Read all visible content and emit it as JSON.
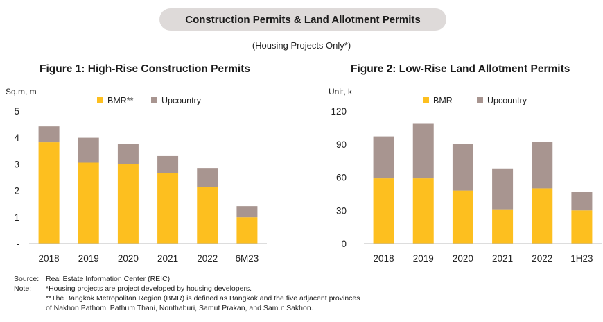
{
  "header": {
    "title": "Construction Permits & Land Allotment Permits",
    "subtitle": "(Housing Projects Only*)"
  },
  "colors": {
    "bmr": "#FDBF1F",
    "upcountry": "#A89590",
    "pill_bg": "#DEDAD9"
  },
  "chart_data": [
    {
      "type": "bar",
      "stacked": true,
      "title": "Figure 1: High-Rise Construction Permits",
      "ylabel": "Sq.m, m",
      "ylim": [
        0,
        5
      ],
      "yticks": [
        "-",
        "1",
        "2",
        "3",
        "4",
        "5"
      ],
      "categories": [
        "2018",
        "2019",
        "2020",
        "2021",
        "2022",
        "6M23"
      ],
      "series": [
        {
          "name": "BMR**",
          "values": [
            3.82,
            3.05,
            3.01,
            2.65,
            2.14,
            0.99
          ]
        },
        {
          "name": "Upcountry",
          "values": [
            0.6,
            0.94,
            0.74,
            0.65,
            0.71,
            0.42
          ]
        }
      ],
      "legend": "top"
    },
    {
      "type": "bar",
      "stacked": true,
      "title": "Figure 2: Low-Rise Land Allotment Permits",
      "ylabel": "Unit, k",
      "ylim": [
        0,
        120
      ],
      "yticks": [
        "0",
        "30",
        "60",
        "90",
        "120"
      ],
      "categories": [
        "2018",
        "2019",
        "2020",
        "2021",
        "2022",
        "1H23"
      ],
      "series": [
        {
          "name": "BMR",
          "values": [
            59,
            59,
            48,
            31,
            50,
            30
          ]
        },
        {
          "name": "Upcountry",
          "values": [
            38,
            50,
            42,
            37,
            42,
            17
          ]
        }
      ],
      "legend": "top"
    }
  ],
  "notes": {
    "source_key": "Source:",
    "source_text": "Real Estate Information Center (REIC)",
    "note_key": "Note:",
    "note_line1": "*Housing projects are project developed by housing developers.",
    "note_line2": "**The Bangkok Metropolitan Region (BMR) is defined as Bangkok and the five adjacent provinces",
    "note_line3": "of Nakhon Pathom, Pathum Thani, Nonthaburi, Samut Prakan, and Samut Sakhon."
  }
}
